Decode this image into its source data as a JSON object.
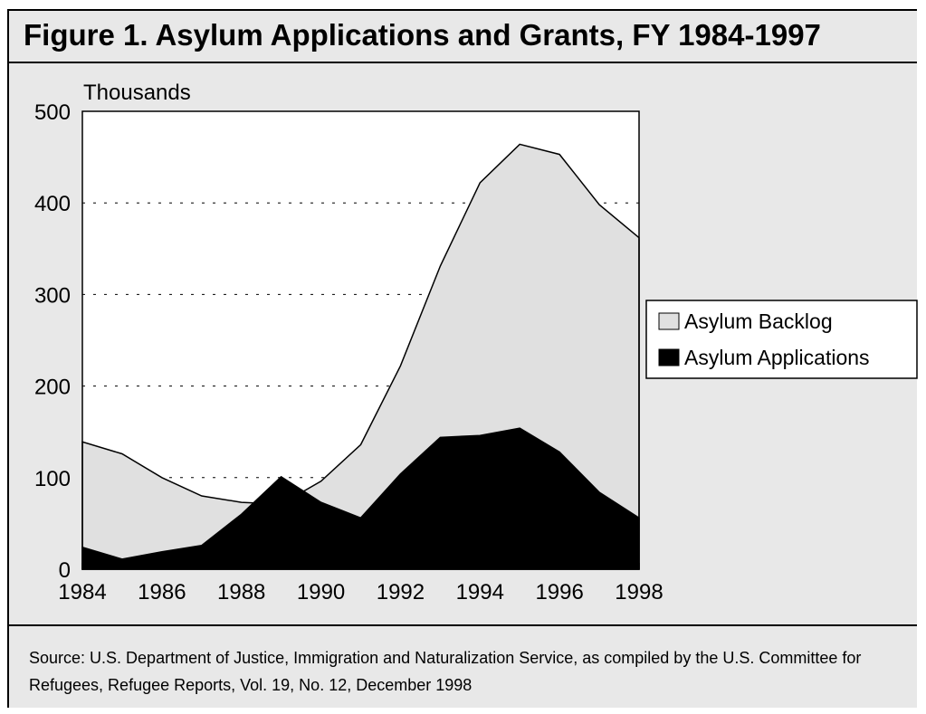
{
  "title": "Figure 1. Asylum Applications and Grants, FY 1984-1997",
  "source": "Source: U.S. Department of Justice, Immigration and Naturalization Service, as compiled by the U.S. Committee for Refugees, Refugee Reports, Vol. 19, No. 12, December 1998",
  "colors": {
    "frame_background": "#e8e8e8",
    "plot_background": "#ffffff",
    "backlog_fill": "#e0e0e0",
    "applications_fill": "#000000"
  },
  "chart_data": {
    "type": "area",
    "ylabel": "Thousands",
    "ylim": [
      0,
      500
    ],
    "xlim": [
      1984,
      1998
    ],
    "yticks": [
      0,
      100,
      200,
      300,
      400,
      500
    ],
    "xticks": [
      1984,
      1986,
      1988,
      1990,
      1992,
      1994,
      1996,
      1998
    ],
    "grid": "horizontal dotted",
    "legend_position": "right",
    "x": [
      1984,
      1985,
      1986,
      1987,
      1988,
      1989,
      1990,
      1991,
      1992,
      1993,
      1994,
      1995,
      1996,
      1997,
      1998
    ],
    "series": [
      {
        "name": "Asylum Backlog",
        "color": "#e0e0e0",
        "values": [
          139,
          126,
          100,
          80,
          73,
          71,
          96,
          136,
          222,
          331,
          422,
          464,
          453,
          398,
          362
        ]
      },
      {
        "name": "Asylum Applications",
        "color": "#000000",
        "values": [
          24,
          11,
          19,
          26,
          60,
          101,
          73,
          56,
          104,
          144,
          146,
          154,
          128,
          84,
          56
        ]
      }
    ]
  }
}
